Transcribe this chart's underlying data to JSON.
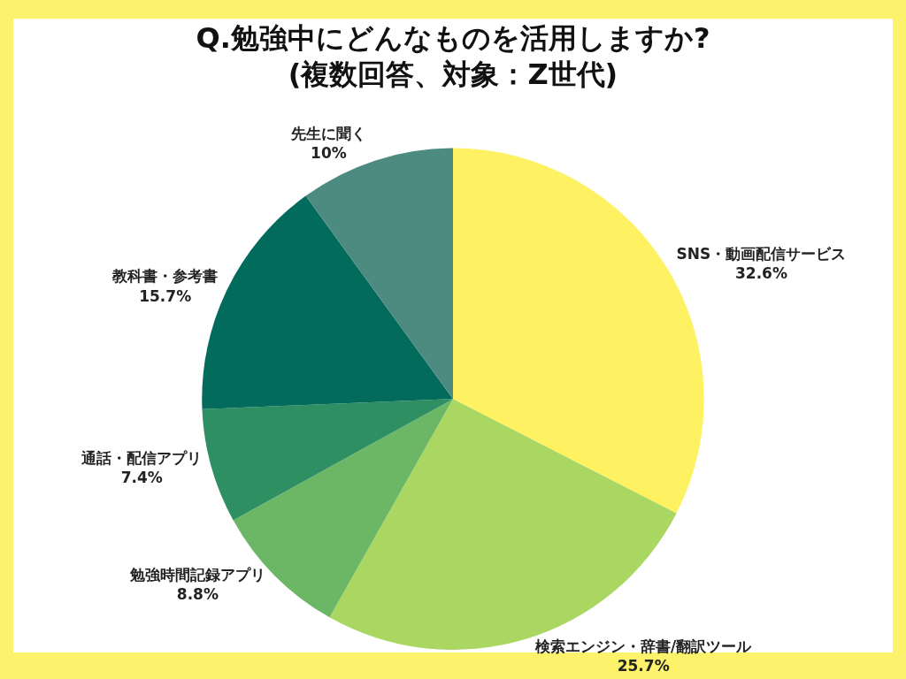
{
  "chart_data": {
    "type": "pie",
    "title": "Q.勉強中にどんなものを活用しますか?\n(複数回答、対象：Z世代)",
    "categories": [
      "SNS・動画配信サービス",
      "検索エンジン・辞書/翻訳ツール",
      "勉強時間記録アプリ",
      "通話・配信アプリ",
      "教科書・参考書",
      "先生に聞く"
    ],
    "values": [
      32.6,
      25.7,
      8.8,
      7.4,
      15.7,
      10
    ],
    "colors": [
      "#fef263",
      "#aad662",
      "#6cb766",
      "#2e8f63",
      "#026b5c",
      "#4d8b80"
    ],
    "value_labels": [
      "32.6%",
      "25.7%",
      "8.8%",
      "7.4%",
      "15.7%",
      "10%"
    ],
    "legend": false
  }
}
